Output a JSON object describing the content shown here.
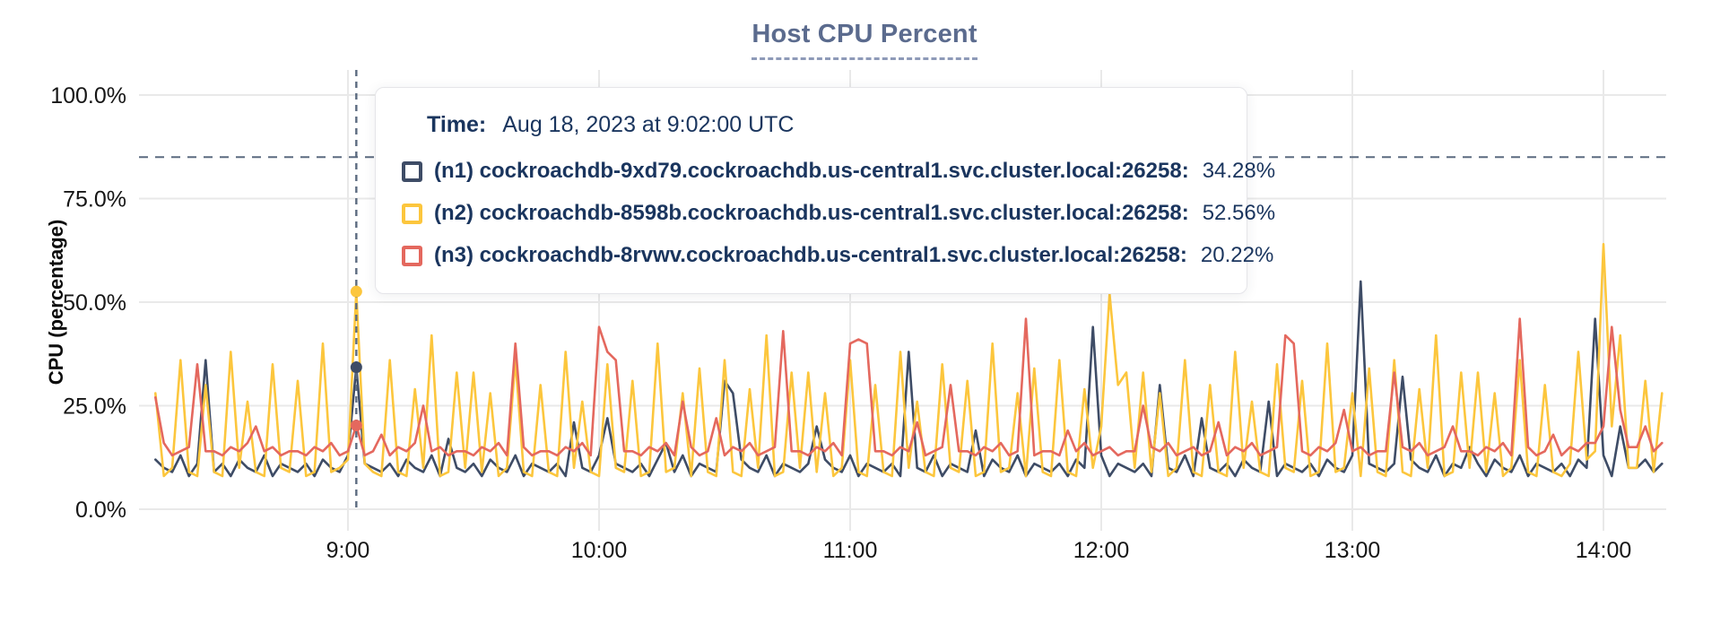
{
  "title": "Host CPU Percent",
  "tooltip": {
    "time_label": "Time:",
    "time_value": "Aug 18, 2023 at 9:02:00 UTC"
  },
  "chart_data": {
    "type": "line",
    "title": "Host CPU Percent",
    "xlabel": "",
    "ylabel": "CPU (percentage)",
    "ylim": [
      0,
      100
    ],
    "grid": true,
    "legend_position": "tooltip-overlay",
    "y_ticks": [
      {
        "label": "0.0%",
        "value": 0
      },
      {
        "label": "25.0%",
        "value": 25
      },
      {
        "label": "50.0%",
        "value": 50
      },
      {
        "label": "75.0%",
        "value": 75
      },
      {
        "label": "100.0%",
        "value": 100
      }
    ],
    "x_ticks": [
      {
        "label": "9:00",
        "minute": 540
      },
      {
        "label": "10:00",
        "minute": 600
      },
      {
        "label": "11:00",
        "minute": 660
      },
      {
        "label": "12:00",
        "minute": 720
      },
      {
        "label": "13:00",
        "minute": 780
      },
      {
        "label": "14:00",
        "minute": 840
      }
    ],
    "threshold_value": 85,
    "threshold_color": "#5c6b80",
    "crosshair_color": "#5c6b80",
    "cursor_minute": 542,
    "x_start_min": 494,
    "x_step_min": 2,
    "series": [
      {
        "id": "n1",
        "label": "(n1) cockroachdb-9xd79.cockroachdb.us-central1.svc.cluster.local:26258:",
        "value_label": "34.28%",
        "value_at_cursor": 34.28,
        "color": "#3e4c66",
        "values": [
          12,
          10,
          9,
          13,
          8,
          11,
          36,
          9,
          11,
          8,
          12,
          10,
          9,
          13,
          8,
          11,
          10,
          9,
          11,
          8,
          12,
          10,
          9,
          13,
          34.28,
          11,
          10,
          9,
          11,
          8,
          12,
          10,
          9,
          13,
          8,
          17,
          10,
          9,
          11,
          8,
          12,
          10,
          9,
          13,
          8,
          11,
          10,
          9,
          11,
          8,
          21,
          10,
          9,
          13,
          22,
          11,
          10,
          9,
          11,
          8,
          12,
          16,
          9,
          13,
          8,
          11,
          10,
          9,
          31,
          28,
          12,
          10,
          9,
          13,
          8,
          11,
          10,
          9,
          11,
          20,
          12,
          10,
          9,
          13,
          8,
          11,
          10,
          9,
          11,
          8,
          38,
          10,
          9,
          13,
          8,
          11,
          10,
          9,
          19,
          8,
          12,
          10,
          9,
          13,
          8,
          11,
          10,
          9,
          11,
          8,
          12,
          10,
          44,
          13,
          8,
          11,
          10,
          9,
          11,
          8,
          30,
          10,
          9,
          13,
          8,
          22,
          10,
          9,
          11,
          8,
          12,
          10,
          9,
          26,
          8,
          11,
          10,
          9,
          11,
          8,
          12,
          10,
          9,
          13,
          55,
          11,
          10,
          9,
          11,
          32,
          12,
          10,
          9,
          13,
          8,
          11,
          10,
          15,
          11,
          8,
          12,
          10,
          9,
          13,
          8,
          11,
          10,
          9,
          11,
          8,
          12,
          10,
          46,
          13,
          8,
          20,
          10,
          10,
          12,
          9,
          11
        ]
      },
      {
        "id": "n2",
        "label": "(n2) cockroachdb-8598b.cockroachdb.us-central1.svc.cluster.local:26258:",
        "value_label": "52.56%",
        "value_at_cursor": 52.56,
        "color": "#fcc63d",
        "values": [
          28,
          8,
          10,
          36,
          9,
          8,
          30,
          9,
          8,
          38,
          10,
          26,
          9,
          8,
          35,
          10,
          9,
          31,
          8,
          9,
          40,
          9,
          10,
          12,
          52.56,
          11,
          9,
          8,
          36,
          9,
          8,
          29,
          10,
          42,
          8,
          9,
          33,
          10,
          33,
          9,
          28,
          8,
          10,
          36,
          9,
          8,
          30,
          9,
          8,
          38,
          10,
          26,
          9,
          8,
          35,
          10,
          9,
          31,
          8,
          9,
          40,
          9,
          10,
          28,
          8,
          34,
          9,
          8,
          36,
          9,
          8,
          29,
          10,
          42,
          8,
          9,
          33,
          10,
          33,
          9,
          28,
          8,
          10,
          36,
          9,
          8,
          30,
          9,
          8,
          38,
          10,
          26,
          9,
          8,
          35,
          10,
          9,
          31,
          8,
          9,
          40,
          9,
          10,
          28,
          8,
          34,
          9,
          8,
          36,
          9,
          8,
          29,
          10,
          20,
          52,
          30,
          33,
          10,
          33,
          9,
          28,
          8,
          10,
          36,
          9,
          8,
          30,
          9,
          8,
          38,
          10,
          26,
          9,
          8,
          35,
          10,
          9,
          31,
          8,
          9,
          40,
          9,
          10,
          28,
          8,
          34,
          9,
          8,
          36,
          9,
          8,
          29,
          10,
          42,
          8,
          9,
          33,
          10,
          33,
          9,
          28,
          8,
          10,
          36,
          9,
          8,
          30,
          9,
          8,
          11,
          38,
          12,
          14,
          64,
          20,
          42,
          10,
          10,
          31,
          9,
          28
        ]
      },
      {
        "id": "n3",
        "label": "(n3) cockroachdb-8rvwv.cockroachdb.us-central1.svc.cluster.local:26258:",
        "value_label": "20.22%",
        "value_at_cursor": 20.22,
        "color": "#e4685e",
        "values": [
          27,
          16,
          13,
          14,
          15,
          35,
          14,
          14,
          13,
          15,
          14,
          16,
          20,
          14,
          15,
          13,
          14,
          14,
          13,
          15,
          14,
          16,
          13,
          14,
          20.22,
          13,
          14,
          18,
          13,
          15,
          14,
          16,
          25,
          14,
          15,
          13,
          14,
          14,
          13,
          15,
          14,
          16,
          13,
          40,
          15,
          13,
          14,
          14,
          13,
          15,
          14,
          16,
          13,
          44,
          38,
          36,
          14,
          14,
          13,
          15,
          14,
          16,
          13,
          26,
          15,
          13,
          14,
          22,
          13,
          15,
          14,
          16,
          13,
          14,
          15,
          43,
          14,
          14,
          13,
          15,
          14,
          16,
          13,
          40,
          41,
          40,
          14,
          14,
          13,
          15,
          14,
          21,
          13,
          14,
          15,
          30,
          14,
          14,
          13,
          15,
          14,
          16,
          13,
          14,
          46,
          13,
          14,
          14,
          13,
          19,
          14,
          16,
          13,
          14,
          15,
          13,
          14,
          14,
          25,
          15,
          14,
          16,
          13,
          14,
          15,
          13,
          14,
          21,
          13,
          15,
          14,
          16,
          13,
          14,
          15,
          42,
          40,
          14,
          13,
          15,
          14,
          16,
          24,
          14,
          15,
          13,
          14,
          14,
          33,
          15,
          14,
          16,
          13,
          14,
          15,
          20,
          14,
          14,
          13,
          15,
          14,
          16,
          13,
          46,
          15,
          13,
          14,
          18,
          13,
          15,
          14,
          16,
          16,
          20,
          44,
          24,
          15,
          15,
          20,
          14,
          16
        ]
      }
    ]
  }
}
